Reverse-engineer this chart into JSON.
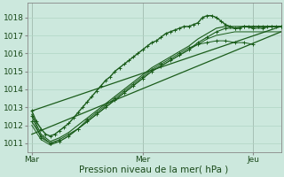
{
  "xlabel": "Pression niveau de la mer( hPa )",
  "bg_color": "#cce8dd",
  "grid_color": "#b0d4c4",
  "line_color": "#1a5c1a",
  "x_ticks": [
    0,
    48,
    96
  ],
  "x_tick_labels": [
    "Mar",
    "Mer",
    "Jeu"
  ],
  "ylim": [
    1010.5,
    1018.8
  ],
  "yticks": [
    1011,
    1012,
    1013,
    1014,
    1015,
    1016,
    1017,
    1018
  ],
  "xlim": [
    -2,
    108
  ],
  "figsize": [
    3.2,
    2.0
  ],
  "dpi": 100,
  "lines": [
    {
      "t": [
        0,
        2,
        4,
        6,
        8,
        10,
        12,
        14,
        16,
        18,
        20,
        22,
        24,
        26,
        28,
        30,
        32,
        34,
        36,
        38,
        40,
        42,
        44,
        46,
        48,
        50,
        52,
        54,
        56,
        58,
        60,
        62,
        64,
        66,
        68,
        70,
        72,
        74,
        76,
        78,
        80,
        82,
        84,
        86,
        88,
        90,
        92,
        94,
        96,
        98,
        100,
        102,
        104,
        106,
        108
      ],
      "p": [
        1012.8,
        1012.2,
        1011.8,
        1011.5,
        1011.4,
        1011.5,
        1011.7,
        1011.9,
        1012.1,
        1012.4,
        1012.7,
        1013.0,
        1013.3,
        1013.6,
        1013.9,
        1014.2,
        1014.5,
        1014.7,
        1015.0,
        1015.2,
        1015.4,
        1015.6,
        1015.8,
        1016.0,
        1016.2,
        1016.4,
        1016.6,
        1016.7,
        1016.9,
        1017.1,
        1017.2,
        1017.3,
        1017.4,
        1017.5,
        1017.5,
        1017.6,
        1017.7,
        1018.0,
        1018.1,
        1018.1,
        1018.0,
        1017.8,
        1017.6,
        1017.5,
        1017.4,
        1017.4,
        1017.5,
        1017.5,
        1017.5,
        1017.5,
        1017.5,
        1017.5,
        1017.5,
        1017.5,
        1017.5
      ],
      "lw": 1.0,
      "marker": true,
      "zorder": 5
    },
    {
      "t": [
        0,
        4,
        8,
        12,
        16,
        20,
        24,
        28,
        32,
        36,
        40,
        44,
        48,
        52,
        56,
        60,
        64,
        68,
        72,
        76,
        80,
        84,
        88,
        92,
        96,
        100,
        104,
        108
      ],
      "p": [
        1012.2,
        1011.4,
        1011.0,
        1011.2,
        1011.5,
        1011.8,
        1012.2,
        1012.6,
        1013.0,
        1013.4,
        1013.8,
        1014.2,
        1014.6,
        1015.0,
        1015.3,
        1015.6,
        1015.9,
        1016.2,
        1016.6,
        1016.9,
        1017.2,
        1017.4,
        1017.4,
        1017.5,
        1017.4,
        1017.4,
        1017.5,
        1017.5
      ],
      "lw": 0.8,
      "marker": true,
      "zorder": 4
    },
    {
      "t": [
        0,
        4,
        8,
        12,
        16,
        20,
        24,
        28,
        32,
        36,
        40,
        44,
        48,
        52,
        56,
        60,
        64,
        68,
        72,
        76,
        80,
        84,
        88,
        92,
        96
      ],
      "p": [
        1012.5,
        1011.3,
        1011.0,
        1011.1,
        1011.4,
        1011.8,
        1012.3,
        1012.7,
        1013.1,
        1013.5,
        1013.9,
        1014.3,
        1014.7,
        1015.1,
        1015.4,
        1015.7,
        1016.0,
        1016.3,
        1016.5,
        1016.6,
        1016.7,
        1016.7,
        1016.6,
        1016.6,
        1016.5
      ],
      "lw": 0.7,
      "marker": true,
      "zorder": 3
    },
    {
      "t": [
        0,
        4,
        8,
        12,
        16,
        20,
        24,
        28,
        32,
        36,
        40,
        44,
        48,
        52,
        56,
        60,
        64,
        68,
        72,
        76,
        80,
        84,
        88,
        92,
        96,
        100,
        104,
        108
      ],
      "p": [
        1012.6,
        1011.5,
        1011.1,
        1011.3,
        1011.6,
        1012.0,
        1012.4,
        1012.8,
        1013.2,
        1013.6,
        1014.0,
        1014.4,
        1014.8,
        1015.2,
        1015.5,
        1015.8,
        1016.1,
        1016.4,
        1016.8,
        1017.1,
        1017.4,
        1017.5,
        1017.5,
        1017.5,
        1017.5,
        1017.5,
        1017.5,
        1017.5
      ],
      "lw": 0.8,
      "marker": false,
      "zorder": 2
    },
    {
      "t": [
        0,
        4,
        8,
        12,
        16,
        20,
        24,
        28,
        32,
        36,
        40,
        44,
        48,
        52,
        56,
        60,
        64,
        68,
        72,
        76,
        80,
        84,
        88,
        92,
        96,
        100,
        104,
        108
      ],
      "p": [
        1012.0,
        1011.2,
        1010.9,
        1011.1,
        1011.4,
        1011.8,
        1012.2,
        1012.6,
        1013.0,
        1013.4,
        1013.8,
        1014.2,
        1014.6,
        1015.0,
        1015.3,
        1015.6,
        1015.9,
        1016.2,
        1016.5,
        1016.8,
        1017.0,
        1017.1,
        1017.2,
        1017.2,
        1017.2,
        1017.2,
        1017.2,
        1017.2
      ],
      "lw": 0.7,
      "marker": false,
      "zorder": 2
    }
  ],
  "env_lines": [
    {
      "t": [
        0,
        108
      ],
      "p": [
        1012.8,
        1017.5
      ],
      "lw": 0.9
    },
    {
      "t": [
        0,
        108
      ],
      "p": [
        1011.5,
        1017.2
      ],
      "lw": 0.9
    }
  ]
}
